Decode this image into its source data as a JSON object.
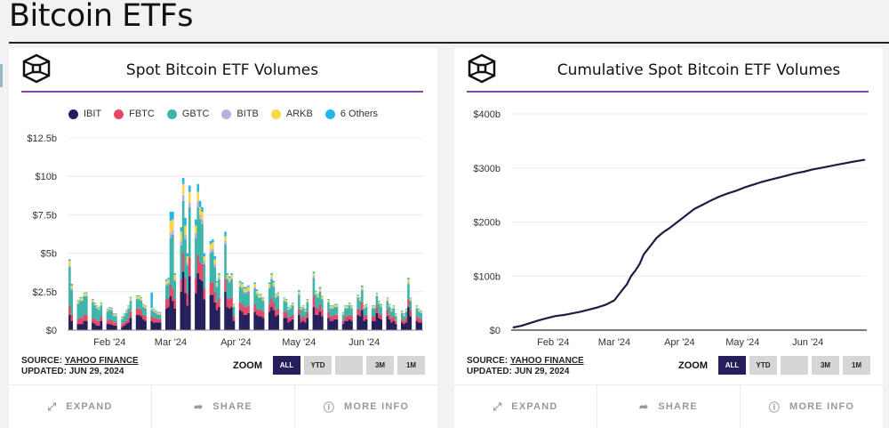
{
  "page": {
    "title": "Bitcoin ETFs"
  },
  "colors": {
    "IBIT": "#25205c",
    "FBTC": "#e84868",
    "GBTC": "#3db5ab",
    "BITB": "#b7b0e0",
    "ARKB": "#f5d94a",
    "Others": "#22b7e8",
    "accent_rule": "#8e44ad",
    "line": "#1f1d45",
    "zoom_active": "#25205c"
  },
  "cards": [
    {
      "title": "Spot Bitcoin ETF Volumes",
      "logo_icon": "cube-logo-icon",
      "source_label": "SOURCE:",
      "source_link": "YAHOO FINANCE",
      "updated": "UPDATED: JUN 29, 2024",
      "zoom_label": "ZOOM",
      "zoom_buttons": [
        "ALL",
        "YTD",
        "",
        "3M",
        "1M"
      ],
      "zoom_active": "ALL",
      "actions": [
        {
          "label": "EXPAND",
          "icon": "expand-icon"
        },
        {
          "label": "SHARE",
          "icon": "share-icon"
        },
        {
          "label": "MORE INFO",
          "icon": "info-icon"
        }
      ]
    },
    {
      "title": "Cumulative Spot Bitcoin ETF Volumes",
      "logo_icon": "cube-logo-icon",
      "source_label": "SOURCE:",
      "source_link": "YAHOO FINANCE",
      "updated": "UPDATED: JUN 29, 2024",
      "zoom_label": "ZOOM",
      "zoom_buttons": [
        "ALL",
        "YTD",
        "",
        "3M",
        "1M"
      ],
      "zoom_active": "ALL",
      "actions": [
        {
          "label": "EXPAND",
          "icon": "expand-icon"
        },
        {
          "label": "SHARE",
          "icon": "share-icon"
        },
        {
          "label": "MORE INFO",
          "icon": "info-icon"
        }
      ]
    }
  ],
  "chart_data": [
    {
      "type": "bar",
      "stacked": true,
      "title": "Spot Bitcoin ETF Volumes",
      "xlabel": "",
      "ylabel": "",
      "y_unit": "billion USD",
      "ylim": [
        0,
        12.5
      ],
      "yticks": [
        0,
        2.5,
        5,
        7.5,
        10,
        12.5
      ],
      "ytick_labels": [
        "$0",
        "$2.5b",
        "$5b",
        "$7.5b",
        "$10b",
        "$12.5b"
      ],
      "xtick_labels": [
        "Feb '24",
        "Mar '24",
        "Apr '24",
        "May '24",
        "Jun '24"
      ],
      "x_range_days": [
        0,
        169
      ],
      "xtick_days": [
        20,
        49,
        80,
        110,
        141
      ],
      "legend": [
        "IBIT",
        "FBTC",
        "GBTC",
        "BITB",
        "ARKB",
        "6 Others"
      ],
      "legend_position": "top-center",
      "grid": true,
      "days": [
        1,
        2,
        5,
        6,
        7,
        8,
        9,
        12,
        13,
        14,
        15,
        16,
        19,
        20,
        21,
        22,
        23,
        26,
        27,
        28,
        29,
        30,
        33,
        34,
        35,
        36,
        37,
        40,
        41,
        42,
        43,
        44,
        47,
        48,
        49,
        50,
        51,
        54,
        55,
        56,
        57,
        58,
        61,
        62,
        63,
        64,
        65,
        68,
        69,
        70,
        71,
        72,
        75,
        76,
        77,
        78,
        79,
        82,
        83,
        84,
        85,
        86,
        89,
        90,
        91,
        92,
        93,
        96,
        97,
        98,
        99,
        100,
        103,
        104,
        105,
        106,
        107,
        110,
        111,
        112,
        113,
        114,
        117,
        118,
        119,
        120,
        121,
        124,
        125,
        126,
        127,
        128,
        131,
        132,
        133,
        134,
        135,
        138,
        139,
        140,
        141,
        142,
        145,
        146,
        147,
        148,
        149,
        152,
        153,
        154,
        155,
        156,
        159,
        160,
        161,
        162,
        163,
        166,
        167,
        168
      ],
      "series": [
        {
          "name": "IBIT",
          "values": [
            1.0,
            0.6,
            0.4,
            0.4,
            0.4,
            0.6,
            0.6,
            0.5,
            0.4,
            0.3,
            0.3,
            0.6,
            0.4,
            0.4,
            0.35,
            0.3,
            0.3,
            0.2,
            0.3,
            0.4,
            0.5,
            0.8,
            1.0,
            1.0,
            0.9,
            0.7,
            0.6,
            0.6,
            0.5,
            0.5,
            0.5,
            0.5,
            1.4,
            1.5,
            2.2,
            1.9,
            1.4,
            2.5,
            3.8,
            2.4,
            1.6,
            3.5,
            2.4,
            3.7,
            3.3,
            3.2,
            2.0,
            2.3,
            2.3,
            1.8,
            1.3,
            1.5,
            2.5,
            1.5,
            1.4,
            1.5,
            0.6,
            1.3,
            1.2,
            1.0,
            1.0,
            1.1,
            1.2,
            1.0,
            0.9,
            0.9,
            0.8,
            1.2,
            1.5,
            1.3,
            0.9,
            1.0,
            0.8,
            0.8,
            0.5,
            0.6,
            0.7,
            1.0,
            0.5,
            0.6,
            0.5,
            0.8,
            1.5,
            1.0,
            1.0,
            1.2,
            0.9,
            0.8,
            0.6,
            0.6,
            0.7,
            0.7,
            0.4,
            0.6,
            0.6,
            0.7,
            0.6,
            1.0,
            0.9,
            1.3,
            0.6,
            0.7,
            0.6,
            0.6,
            1.1,
            0.8,
            0.7,
            0.9,
            0.7,
            0.5,
            0.6,
            0.4,
            0.5,
            0.4,
            0.5,
            1.5,
            0.9,
            0.6,
            0.5,
            0.5
          ]
        },
        {
          "name": "FBTC",
          "values": [
            0.6,
            0.4,
            0.3,
            0.4,
            0.4,
            0.4,
            0.4,
            0.3,
            0.3,
            0.3,
            0.3,
            0.3,
            0.2,
            0.3,
            0.3,
            0.2,
            0.2,
            0.2,
            0.2,
            0.2,
            0.3,
            0.4,
            0.4,
            0.4,
            0.4,
            0.3,
            0.3,
            0.3,
            0.3,
            0.3,
            0.2,
            0.2,
            0.6,
            0.6,
            0.8,
            0.8,
            0.6,
            0.8,
            1.2,
            1.0,
            0.8,
            1.2,
            1.0,
            1.2,
            1.1,
            1.1,
            0.7,
            0.8,
            0.8,
            0.7,
            0.5,
            0.6,
            0.8,
            0.6,
            0.6,
            0.6,
            0.3,
            0.5,
            0.5,
            0.5,
            0.5,
            0.5,
            0.5,
            0.4,
            0.4,
            0.4,
            0.4,
            0.5,
            0.6,
            0.5,
            0.4,
            0.4,
            0.4,
            0.4,
            0.3,
            0.3,
            0.3,
            0.4,
            0.3,
            0.3,
            0.3,
            0.4,
            0.7,
            0.5,
            0.4,
            0.5,
            0.4,
            0.4,
            0.3,
            0.3,
            0.3,
            0.3,
            0.2,
            0.3,
            0.3,
            0.3,
            0.3,
            0.4,
            0.4,
            0.5,
            0.3,
            0.3,
            0.3,
            0.3,
            0.4,
            0.3,
            0.3,
            0.4,
            0.3,
            0.3,
            0.3,
            0.2,
            0.2,
            0.2,
            0.3,
            0.5,
            0.4,
            0.3,
            0.3,
            0.2
          ]
        },
        {
          "name": "GBTC",
          "values": [
            2.5,
            1.6,
            1.0,
            1.1,
            1.1,
            1.2,
            1.2,
            1.0,
            0.9,
            0.8,
            0.7,
            0.7,
            0.6,
            0.6,
            0.6,
            0.4,
            0.4,
            0.3,
            0.4,
            0.5,
            0.6,
            0.7,
            0.6,
            0.6,
            0.6,
            0.5,
            0.5,
            0.4,
            0.4,
            0.3,
            0.3,
            0.3,
            0.9,
            0.9,
            3.0,
            3.5,
            1.2,
            2.2,
            3.4,
            2.5,
            1.8,
            3.3,
            2.6,
            3.1,
            2.8,
            2.6,
            1.6,
            1.9,
            2.0,
            1.6,
            1.0,
            1.2,
            2.3,
            1.2,
            1.1,
            1.2,
            0.6,
            1.0,
            1.0,
            0.9,
            0.9,
            0.9,
            1.0,
            0.9,
            0.8,
            0.8,
            0.7,
            1.0,
            1.2,
            1.0,
            0.8,
            0.8,
            0.7,
            0.6,
            0.5,
            0.5,
            0.6,
            0.9,
            0.5,
            0.5,
            0.4,
            0.6,
            1.2,
            0.8,
            0.7,
            0.8,
            0.7,
            0.6,
            0.5,
            0.5,
            0.5,
            0.5,
            0.4,
            0.5,
            0.5,
            0.6,
            0.5,
            0.7,
            0.6,
            0.8,
            0.5,
            0.5,
            0.5,
            0.5,
            0.7,
            0.6,
            0.5,
            0.6,
            0.5,
            0.4,
            0.5,
            0.3,
            0.4,
            0.3,
            0.4,
            1.0,
            0.6,
            0.5,
            0.4,
            0.4
          ]
        },
        {
          "name": "BITB",
          "values": [
            0.1,
            0.1,
            0.05,
            0.05,
            0.05,
            0.05,
            0.05,
            0.05,
            0.05,
            0.05,
            0.05,
            0.05,
            0.05,
            0.05,
            0.05,
            0.05,
            0.05,
            0.05,
            0.05,
            0.05,
            0.05,
            0.05,
            0.05,
            0.05,
            0.05,
            0.05,
            0.05,
            0.05,
            0.05,
            0.05,
            0.05,
            0.05,
            0.1,
            0.1,
            0.3,
            0.3,
            0.1,
            0.3,
            0.4,
            0.3,
            0.2,
            0.3,
            0.3,
            0.4,
            0.3,
            0.3,
            0.2,
            0.2,
            0.2,
            0.2,
            0.1,
            0.1,
            0.2,
            0.1,
            0.1,
            0.1,
            0.05,
            0.1,
            0.1,
            0.1,
            0.1,
            0.1,
            0.1,
            0.1,
            0.05,
            0.05,
            0.05,
            0.1,
            0.1,
            0.1,
            0.05,
            0.05,
            0.05,
            0.05,
            0.05,
            0.05,
            0.05,
            0.05,
            0.05,
            0.05,
            0.05,
            0.05,
            0.1,
            0.05,
            0.05,
            0.05,
            0.05,
            0.05,
            0.05,
            0.05,
            0.05,
            0.05,
            0.05,
            0.05,
            0.05,
            0.05,
            0.05,
            0.05,
            0.05,
            0.05,
            0.05,
            0.05,
            0.05,
            0.05,
            0.05,
            0.05,
            0.05,
            0.05,
            0.05,
            0.05,
            0.05,
            0.05,
            0.05,
            0.05,
            0.05,
            0.1,
            0.05,
            0.05,
            0.05,
            0.05
          ]
        },
        {
          "name": "ARKB",
          "values": [
            0.3,
            0.2,
            0.15,
            0.15,
            0.15,
            0.15,
            0.15,
            0.12,
            0.1,
            0.1,
            0.1,
            0.1,
            0.1,
            0.1,
            0.1,
            0.08,
            0.08,
            0.08,
            0.08,
            0.1,
            0.1,
            0.15,
            0.15,
            0.15,
            0.15,
            0.1,
            0.1,
            0.1,
            0.1,
            0.08,
            0.08,
            0.08,
            0.2,
            0.2,
            0.8,
            0.7,
            0.3,
            0.6,
            0.7,
            0.6,
            0.4,
            0.7,
            0.5,
            0.6,
            0.5,
            0.5,
            0.3,
            0.4,
            0.4,
            0.3,
            0.2,
            0.2,
            0.3,
            0.2,
            0.2,
            0.2,
            0.1,
            0.2,
            0.2,
            0.2,
            0.2,
            0.2,
            0.2,
            0.15,
            0.15,
            0.15,
            0.12,
            0.2,
            0.2,
            0.2,
            0.15,
            0.15,
            0.12,
            0.12,
            0.1,
            0.1,
            0.1,
            0.15,
            0.1,
            0.1,
            0.1,
            0.12,
            0.2,
            0.15,
            0.15,
            0.15,
            0.12,
            0.12,
            0.1,
            0.1,
            0.1,
            0.1,
            0.08,
            0.1,
            0.1,
            0.1,
            0.1,
            0.12,
            0.12,
            0.15,
            0.1,
            0.1,
            0.1,
            0.1,
            0.12,
            0.1,
            0.1,
            0.12,
            0.1,
            0.08,
            0.1,
            0.08,
            0.08,
            0.08,
            0.08,
            0.2,
            0.12,
            0.1,
            0.1,
            0.08
          ]
        },
        {
          "name": "6 Others",
          "values": [
            0.1,
            0.1,
            0.05,
            0.05,
            0.05,
            0.05,
            0.05,
            0.05,
            0.05,
            0.05,
            0.05,
            0.05,
            0.05,
            0.05,
            0.05,
            0.05,
            0.05,
            0.05,
            0.05,
            0.05,
            0.05,
            0.05,
            0.05,
            0.05,
            0.05,
            0.05,
            0.05,
            1.0,
            0.05,
            0.05,
            0.05,
            0.05,
            0.1,
            0.1,
            0.6,
            0.5,
            0.1,
            0.3,
            0.4,
            0.5,
            0.2,
            0.4,
            0.4,
            0.5,
            0.4,
            0.3,
            0.2,
            0.2,
            0.2,
            0.2,
            0.1,
            0.1,
            0.3,
            0.1,
            0.1,
            0.1,
            0.05,
            0.1,
            0.1,
            0.1,
            0.1,
            0.1,
            0.1,
            0.1,
            0.05,
            0.05,
            0.05,
            0.1,
            0.1,
            0.1,
            0.05,
            0.05,
            0.05,
            0.05,
            0.05,
            0.05,
            0.05,
            0.1,
            0.05,
            0.05,
            0.05,
            0.05,
            0.1,
            0.05,
            0.05,
            0.1,
            0.05,
            0.05,
            0.05,
            0.05,
            0.05,
            0.05,
            0.05,
            0.05,
            0.05,
            0.05,
            0.05,
            0.05,
            0.05,
            0.1,
            0.05,
            0.05,
            0.05,
            0.05,
            0.05,
            0.05,
            0.05,
            0.05,
            0.05,
            0.05,
            0.05,
            0.05,
            0.05,
            0.05,
            0.05,
            0.1,
            0.05,
            0.05,
            0.05,
            0.05
          ]
        }
      ]
    },
    {
      "type": "line",
      "title": "Cumulative Spot Bitcoin ETF Volumes",
      "xlabel": "",
      "ylabel": "",
      "y_unit": "billion USD",
      "ylim": [
        0,
        400
      ],
      "yticks": [
        0,
        100,
        200,
        300,
        400
      ],
      "ytick_labels": [
        "$0",
        "$100b",
        "$200b",
        "$300b",
        "$400b"
      ],
      "xtick_labels": [
        "Feb '24",
        "Mar '24",
        "Apr '24",
        "May '24",
        "Jun '24"
      ],
      "x_range_days": [
        0,
        169
      ],
      "xtick_days": [
        20,
        49,
        80,
        110,
        141
      ],
      "grid": true,
      "series": [
        {
          "name": "Cumulative Volume",
          "x": [
            1,
            5,
            9,
            13,
            17,
            21,
            25,
            29,
            33,
            37,
            41,
            45,
            49,
            51,
            53,
            55,
            57,
            59,
            61,
            63,
            65,
            67,
            69,
            71,
            73,
            75,
            79,
            83,
            87,
            91,
            95,
            99,
            103,
            107,
            111,
            115,
            119,
            123,
            127,
            131,
            135,
            139,
            143,
            147,
            151,
            155,
            159,
            163,
            168
          ],
          "y": [
            5,
            8,
            13,
            18,
            22,
            26,
            28,
            31,
            34,
            38,
            42,
            47,
            55,
            65,
            75,
            85,
            100,
            110,
            122,
            140,
            150,
            160,
            170,
            177,
            183,
            188,
            200,
            212,
            224,
            232,
            240,
            247,
            253,
            258,
            264,
            269,
            274,
            278,
            282,
            286,
            290,
            293,
            297,
            300,
            303,
            306,
            309,
            312,
            315
          ]
        }
      ]
    }
  ]
}
